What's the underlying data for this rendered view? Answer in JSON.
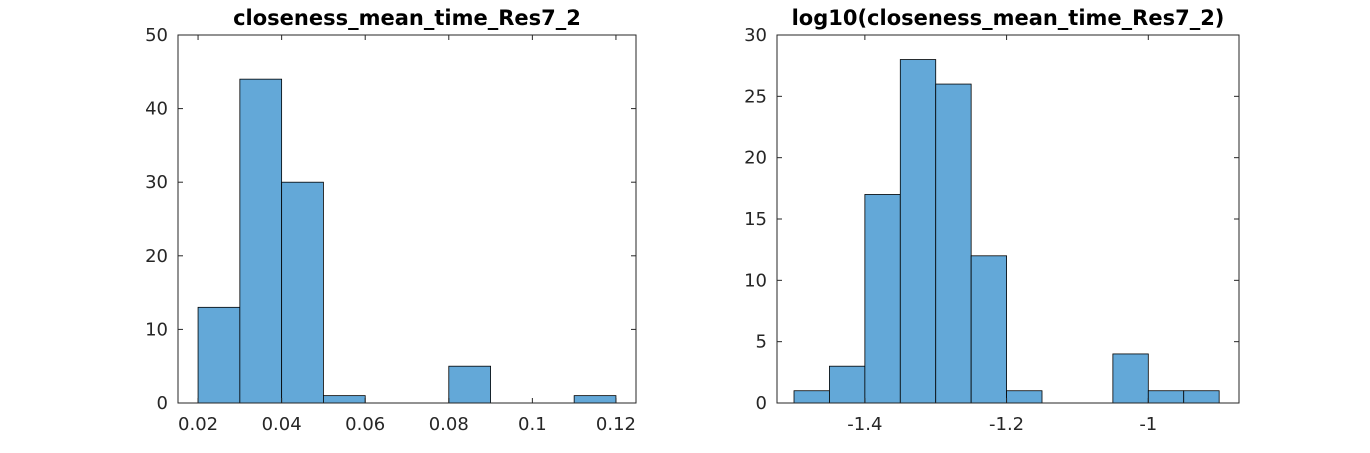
{
  "colors": {
    "bar_fill": "#63a8d8",
    "bar_edge": "#000000",
    "axis": "#262626"
  },
  "chart_data": [
    {
      "type": "bar",
      "title": "closeness_mean_time_Res7_2",
      "bins": [
        {
          "x0": 0.02,
          "x1": 0.03,
          "count": 13
        },
        {
          "x0": 0.03,
          "x1": 0.04,
          "count": 44
        },
        {
          "x0": 0.04,
          "x1": 0.05,
          "count": 30
        },
        {
          "x0": 0.05,
          "x1": 0.06,
          "count": 1
        },
        {
          "x0": 0.06,
          "x1": 0.07,
          "count": 0
        },
        {
          "x0": 0.07,
          "x1": 0.08,
          "count": 0
        },
        {
          "x0": 0.08,
          "x1": 0.09,
          "count": 5
        },
        {
          "x0": 0.09,
          "x1": 0.1,
          "count": 0
        },
        {
          "x0": 0.1,
          "x1": 0.11,
          "count": 0
        },
        {
          "x0": 0.11,
          "x1": 0.12,
          "count": 1
        }
      ],
      "xlim": [
        0.0152,
        0.1248
      ],
      "ylim": [
        0,
        50
      ],
      "xticks": [
        0.02,
        0.04,
        0.06,
        0.08,
        0.1,
        0.12
      ],
      "xtick_labels": [
        "0.02",
        "0.04",
        "0.06",
        "0.08",
        "0.1",
        "0.12"
      ],
      "yticks": [
        0,
        10,
        20,
        30,
        40,
        50
      ],
      "ytick_labels": [
        "0",
        "10",
        "20",
        "30",
        "40",
        "50"
      ],
      "grid": false
    },
    {
      "type": "bar",
      "title": "log10(closeness_mean_time_Res7_2)",
      "bins": [
        {
          "x0": -1.5,
          "x1": -1.45,
          "count": 1
        },
        {
          "x0": -1.45,
          "x1": -1.4,
          "count": 3
        },
        {
          "x0": -1.4,
          "x1": -1.35,
          "count": 17
        },
        {
          "x0": -1.35,
          "x1": -1.3,
          "count": 28
        },
        {
          "x0": -1.3,
          "x1": -1.25,
          "count": 26
        },
        {
          "x0": -1.25,
          "x1": -1.2,
          "count": 12
        },
        {
          "x0": -1.2,
          "x1": -1.15,
          "count": 1
        },
        {
          "x0": -1.15,
          "x1": -1.1,
          "count": 0
        },
        {
          "x0": -1.1,
          "x1": -1.05,
          "count": 0
        },
        {
          "x0": -1.05,
          "x1": -1.0,
          "count": 4
        },
        {
          "x0": -1.0,
          "x1": -0.95,
          "count": 1
        },
        {
          "x0": -0.95,
          "x1": -0.9,
          "count": 1
        }
      ],
      "xlim": [
        -1.524,
        -0.872
      ],
      "ylim": [
        0,
        30
      ],
      "xticks": [
        -1.4,
        -1.2,
        -1
      ],
      "xtick_labels": [
        "-1.4",
        "-1.2",
        "-1"
      ],
      "yticks": [
        0,
        5,
        10,
        15,
        20,
        25,
        30
      ],
      "ytick_labels": [
        "0",
        "5",
        "10",
        "15",
        "20",
        "25",
        "30"
      ],
      "grid": false
    }
  ]
}
